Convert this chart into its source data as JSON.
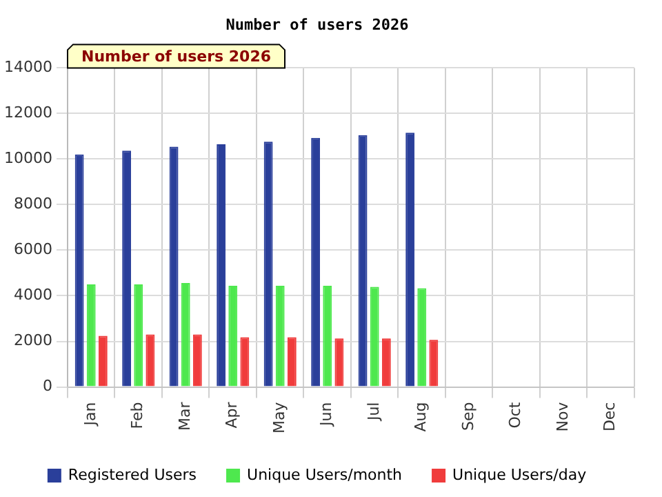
{
  "chart_data": {
    "type": "bar",
    "title": "Number of users 2026",
    "annotations": [
      "Number of users 2026"
    ],
    "categories": [
      "Jan",
      "Feb",
      "Mar",
      "Apr",
      "May",
      "Jun",
      "Jul",
      "Aug",
      "Sep",
      "Oct",
      "Nov",
      "Dec"
    ],
    "series": [
      {
        "name": "Registered Users",
        "color": "#2a3f9a",
        "values": [
          10200,
          10370,
          10540,
          10650,
          10760,
          10930,
          11050,
          11160,
          null,
          null,
          null,
          null
        ]
      },
      {
        "name": "Unique Users/month",
        "color": "#4ee84e",
        "values": [
          4500,
          4500,
          4560,
          4440,
          4440,
          4440,
          4390,
          4330,
          null,
          null,
          null,
          null
        ]
      },
      {
        "name": "Unique Users/day",
        "color": "#f03c3c",
        "values": [
          2240,
          2300,
          2300,
          2180,
          2180,
          2130,
          2130,
          2070,
          null,
          null,
          null,
          null
        ]
      }
    ],
    "ylim": [
      0,
      14000
    ],
    "yticks": [
      0,
      2000,
      4000,
      6000,
      8000,
      10000,
      12000,
      14000
    ],
    "grid": true,
    "legend": "bottom"
  }
}
